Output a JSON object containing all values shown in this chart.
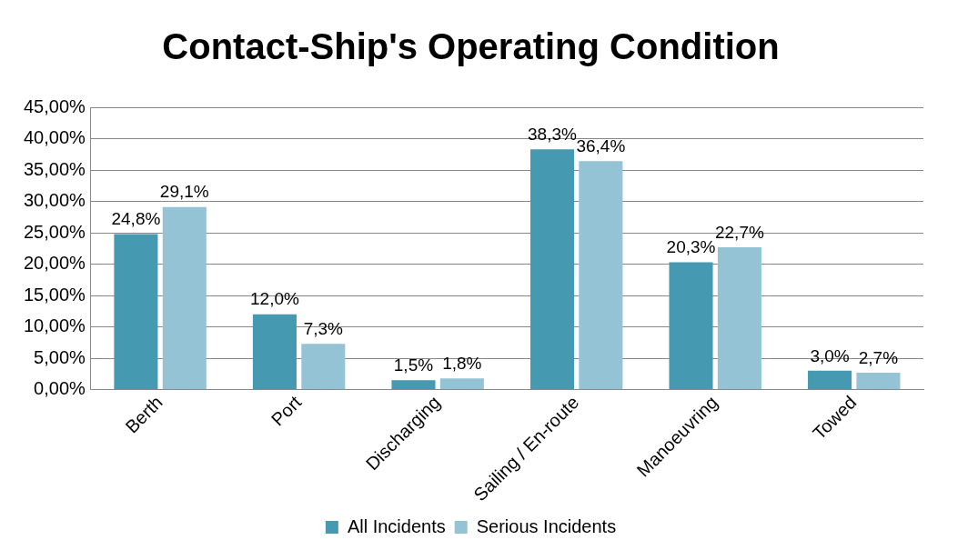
{
  "chart_data": {
    "type": "bar",
    "title": "Contact-Ship's Operating Condition",
    "categories": [
      "Berth",
      "Port",
      "Discharging",
      "Sailing / En-route",
      "Manoeuvring",
      "Towed"
    ],
    "series": [
      {
        "name": "All Incidents",
        "color": "#4599b0",
        "values": [
          24.8,
          12.0,
          1.5,
          38.3,
          20.3,
          3.0
        ],
        "value_labels": [
          "24,8%",
          "12,0%",
          "1,5%",
          "38,3%",
          "20,3%",
          "3,0%"
        ]
      },
      {
        "name": "Serious Incidents",
        "color": "#93c3d4",
        "values": [
          29.1,
          7.3,
          1.8,
          36.4,
          22.7,
          2.7
        ],
        "value_labels": [
          "29,1%",
          "7,3%",
          "1,8%",
          "36,4%",
          "22,7%",
          "2,7%"
        ]
      }
    ],
    "ylim": [
      0,
      45
    ],
    "yticks": [
      {
        "value": 0,
        "label": "0,00%"
      },
      {
        "value": 5,
        "label": "5,00%"
      },
      {
        "value": 10,
        "label": "10,00%"
      },
      {
        "value": 15,
        "label": "15,00%"
      },
      {
        "value": 20,
        "label": "20,00%"
      },
      {
        "value": 25,
        "label": "25,00%"
      },
      {
        "value": 30,
        "label": "30,00%"
      },
      {
        "value": 35,
        "label": "35,00%"
      },
      {
        "value": 40,
        "label": "40,00%"
      },
      {
        "value": 45,
        "label": "45,00%"
      }
    ],
    "grid": "y",
    "legend": "bottom"
  }
}
